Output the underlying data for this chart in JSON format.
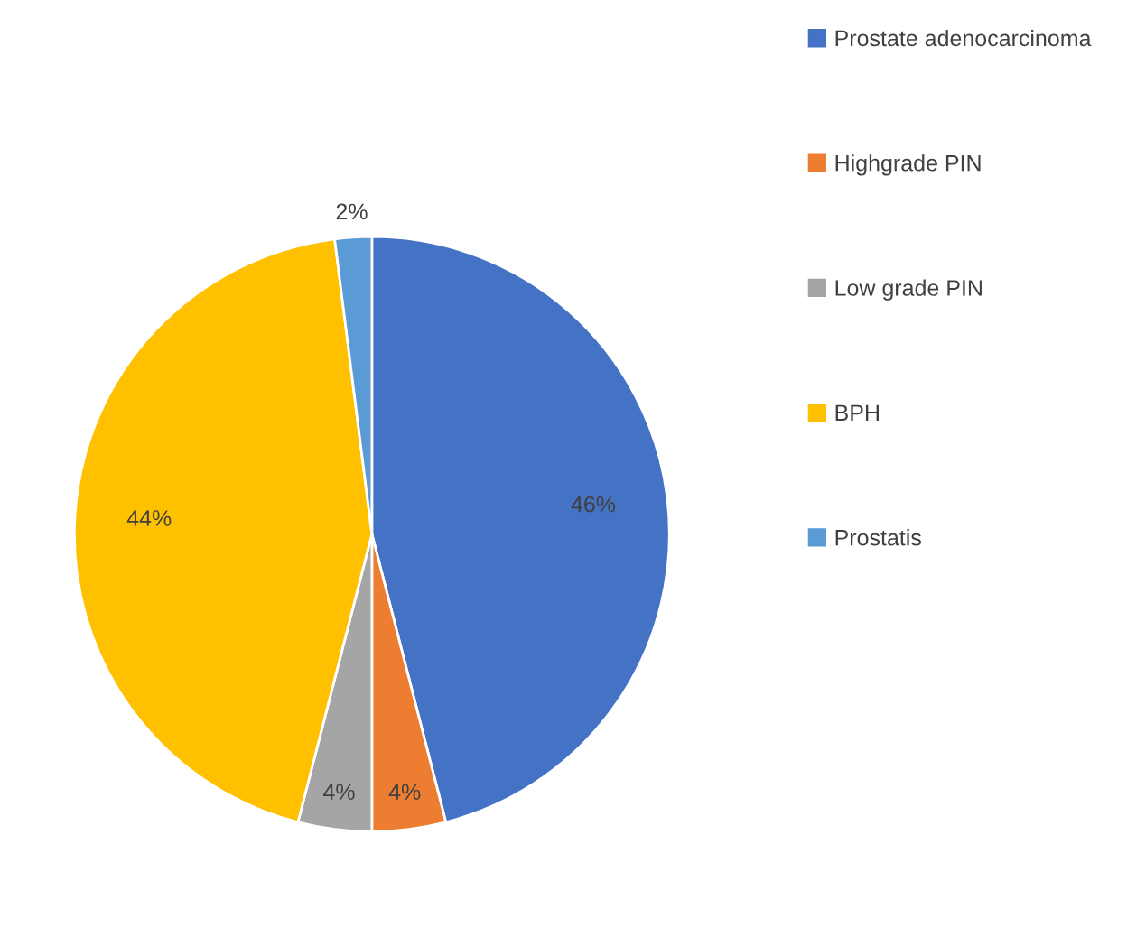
{
  "chart_data": {
    "type": "pie",
    "categories": [
      "Prostate adenocarcinoma",
      "Highgrade PIN",
      "Low grade PIN",
      "BPH",
      "Prostatis"
    ],
    "values": [
      46,
      4,
      4,
      44,
      2
    ],
    "colors": [
      "#4472c4",
      "#ed7d31",
      "#a5a5a5",
      "#ffc000",
      "#5b9bd5"
    ],
    "value_labels": [
      "46%",
      "4%",
      "4%",
      "44%",
      "2%"
    ],
    "legend": "right"
  }
}
